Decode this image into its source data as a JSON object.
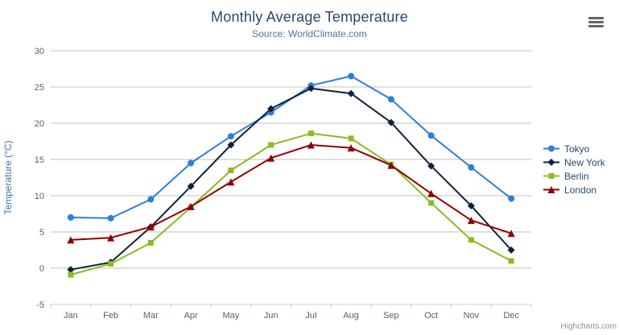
{
  "chart": {
    "credits": "Highcharts.com",
    "background": "#ffffff",
    "grid_color": "#c0c0c0",
    "axis_line_color": "#c0d0e0",
    "axis_label_color": "#606060",
    "title_color": "#274b6d",
    "subtitle_color": "#4d759e",
    "y_title_color": "#4572a7",
    "export_icon": "hamburger-menu-icon"
  },
  "chart_data": {
    "type": "line",
    "title": "Monthly Average Temperature",
    "subtitle": "Source: WorldClimate.com",
    "xlabel": "",
    "ylabel": "Temperature (°C)",
    "ylim": [
      -5,
      30
    ],
    "yticks": [
      -5,
      0,
      5,
      10,
      15,
      20,
      25,
      30
    ],
    "grid": true,
    "legend_position": "right",
    "categories": [
      "Jan",
      "Feb",
      "Mar",
      "Apr",
      "May",
      "Jun",
      "Jul",
      "Aug",
      "Sep",
      "Oct",
      "Nov",
      "Dec"
    ],
    "series": [
      {
        "name": "Tokyo",
        "color": "#2f7ed8",
        "marker": "circle",
        "values": [
          7.0,
          6.9,
          9.5,
          14.5,
          18.2,
          21.5,
          25.2,
          26.5,
          23.3,
          18.3,
          13.9,
          9.6
        ]
      },
      {
        "name": "New York",
        "color": "#0d233a",
        "marker": "diamond",
        "values": [
          -0.2,
          0.8,
          5.7,
          11.3,
          17.0,
          22.0,
          24.8,
          24.1,
          20.1,
          14.1,
          8.6,
          2.5
        ]
      },
      {
        "name": "Berlin",
        "color": "#8bbc21",
        "marker": "square",
        "values": [
          -0.9,
          0.6,
          3.5,
          8.4,
          13.5,
          17.0,
          18.6,
          17.9,
          14.3,
          9.0,
          3.9,
          1.0
        ]
      },
      {
        "name": "London",
        "color": "#910000",
        "marker": "triangle",
        "values": [
          3.9,
          4.2,
          5.7,
          8.5,
          11.9,
          15.2,
          17.0,
          16.6,
          14.2,
          10.3,
          6.6,
          4.8
        ]
      }
    ]
  }
}
